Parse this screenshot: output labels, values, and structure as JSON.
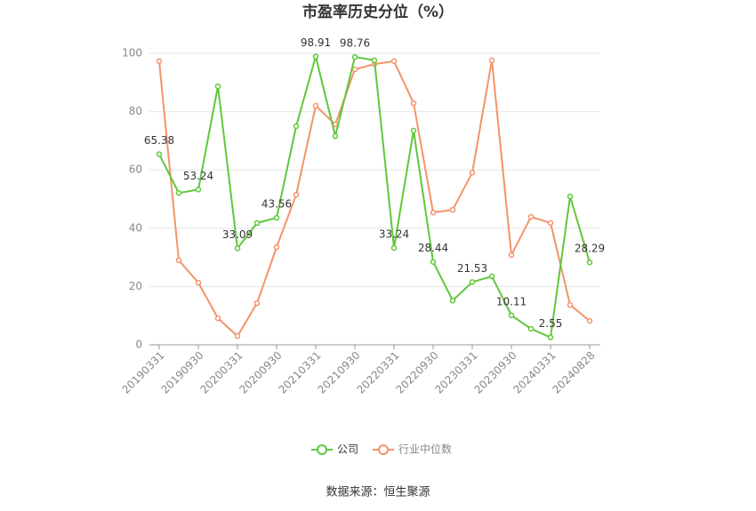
{
  "chart_data": {
    "type": "line",
    "title": "市盈率历史分位（%）",
    "categories": [
      "20190331",
      null,
      "20190930",
      null,
      "20200331",
      null,
      "20200930",
      null,
      "20210331",
      null,
      "20210930",
      null,
      "20220331",
      null,
      "20220930",
      null,
      "20230331",
      null,
      "20230930",
      null,
      "20240331",
      null,
      "20240828"
    ],
    "series": [
      {
        "name": "公司",
        "color": "#5fc83a",
        "values": [
          65.38,
          52.1,
          53.24,
          88.7,
          33.09,
          41.8,
          43.56,
          75.0,
          98.91,
          71.6,
          98.76,
          97.6,
          33.24,
          73.5,
          28.44,
          15.2,
          21.53,
          23.5,
          10.11,
          5.5,
          2.55,
          50.9,
          28.29
        ]
      },
      {
        "name": "行业中位数",
        "color": "#f4936a",
        "values": [
          97.3,
          29.0,
          21.3,
          9.1,
          3.0,
          14.3,
          33.5,
          51.5,
          82.0,
          75.6,
          94.5,
          96.3,
          97.3,
          82.9,
          45.4,
          46.3,
          59.1,
          97.6,
          30.8,
          43.9,
          41.8,
          13.7,
          8.2
        ]
      }
    ],
    "ylim": [
      0,
      100
    ],
    "yticks": [
      0,
      20,
      40,
      60,
      80,
      100
    ],
    "grid": true,
    "legend": "bottom",
    "source": "数据来源：恒生聚源"
  }
}
